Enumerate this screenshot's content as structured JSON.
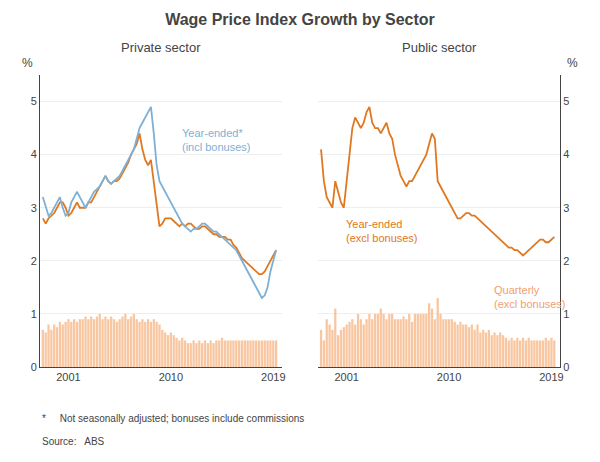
{
  "title": "Wage Price Index Growth by Sector",
  "annotations": [
    "*     Not seasonally adjusted; bonuses include commissions",
    "Source:   ABS"
  ],
  "chart_data": [
    {
      "type": "bar",
      "title": "Private sector",
      "ylabel": "%",
      "x": [
        1998.75,
        1999.0,
        1999.25,
        1999.5,
        1999.75,
        2000.0,
        2000.25,
        2000.5,
        2000.75,
        2001.0,
        2001.25,
        2001.5,
        2001.75,
        2002.0,
        2002.25,
        2002.5,
        2002.75,
        2003.0,
        2003.25,
        2003.5,
        2003.75,
        2004.0,
        2004.25,
        2004.5,
        2004.75,
        2005.0,
        2005.25,
        2005.5,
        2005.75,
        2006.0,
        2006.25,
        2006.5,
        2006.75,
        2007.0,
        2007.25,
        2007.5,
        2007.75,
        2008.0,
        2008.25,
        2008.5,
        2008.75,
        2009.0,
        2009.25,
        2009.5,
        2009.75,
        2010.0,
        2010.25,
        2010.5,
        2010.75,
        2011.0,
        2011.25,
        2011.5,
        2011.75,
        2012.0,
        2012.25,
        2012.5,
        2012.75,
        2013.0,
        2013.25,
        2013.5,
        2013.75,
        2014.0,
        2014.25,
        2014.5,
        2014.75,
        2015.0,
        2015.25,
        2015.5,
        2015.75,
        2016.0,
        2016.25,
        2016.5,
        2016.75,
        2017.0,
        2017.25,
        2017.5,
        2017.75,
        2018.0,
        2018.25,
        2018.5,
        2018.75,
        2019.0,
        2019.25
      ],
      "series": [
        {
          "type": "bar",
          "color": "#f5a86e",
          "values": [
            0.7,
            0.65,
            0.8,
            0.7,
            0.8,
            0.75,
            0.85,
            0.8,
            0.85,
            0.9,
            0.85,
            0.9,
            0.85,
            0.9,
            0.9,
            0.95,
            0.9,
            0.95,
            0.9,
            0.95,
            1.0,
            0.9,
            0.95,
            0.9,
            0.95,
            0.9,
            0.85,
            0.9,
            0.95,
            1.0,
            0.9,
            0.95,
            1.0,
            0.9,
            0.85,
            0.9,
            0.85,
            0.9,
            0.85,
            0.9,
            0.85,
            0.8,
            0.7,
            0.65,
            0.6,
            0.65,
            0.6,
            0.55,
            0.5,
            0.55,
            0.5,
            0.45,
            0.45,
            0.5,
            0.45,
            0.5,
            0.45,
            0.5,
            0.45,
            0.5,
            0.45,
            0.5,
            0.5,
            0.55,
            0.5,
            0.5,
            0.5,
            0.5,
            0.5,
            0.5,
            0.5,
            0.5,
            0.5,
            0.5,
            0.5,
            0.5,
            0.5,
            0.5,
            0.5,
            0.5,
            0.5,
            0.5,
            0.5
          ]
        },
        {
          "type": "line",
          "color": "#e07820",
          "values": [
            2.8,
            2.7,
            2.8,
            2.85,
            2.9,
            3.0,
            3.1,
            3.1,
            3.0,
            2.85,
            2.9,
            3.0,
            3.1,
            3.0,
            3.0,
            3.0,
            3.1,
            3.1,
            3.2,
            3.3,
            3.4,
            3.5,
            3.6,
            3.5,
            3.45,
            3.5,
            3.5,
            3.55,
            3.65,
            3.75,
            3.85,
            4.0,
            4.1,
            4.2,
            4.4,
            4.1,
            3.9,
            3.8,
            3.9,
            3.5,
            3.0,
            2.65,
            2.7,
            2.8,
            2.8,
            2.8,
            2.75,
            2.7,
            2.65,
            2.7,
            2.65,
            2.7,
            2.7,
            2.65,
            2.6,
            2.6,
            2.65,
            2.65,
            2.6,
            2.55,
            2.5,
            2.5,
            2.45,
            2.45,
            2.45,
            2.4,
            2.4,
            2.3,
            2.25,
            2.15,
            2.05,
            2.0,
            1.95,
            1.9,
            1.85,
            1.8,
            1.75,
            1.75,
            1.8,
            1.9,
            2.0,
            2.1,
            2.2
          ]
        },
        {
          "type": "line",
          "color": "#7eb0d5",
          "values": [
            3.2,
            3.0,
            2.85,
            2.9,
            3.0,
            3.1,
            3.2,
            3.0,
            2.85,
            2.9,
            3.1,
            3.2,
            3.3,
            3.2,
            3.1,
            3.0,
            3.1,
            3.2,
            3.3,
            3.35,
            3.4,
            3.5,
            3.6,
            3.5,
            3.45,
            3.5,
            3.55,
            3.6,
            3.7,
            3.8,
            3.9,
            4.0,
            4.1,
            4.3,
            4.5,
            4.6,
            4.7,
            4.8,
            4.9,
            4.4,
            3.8,
            3.5,
            3.4,
            3.3,
            3.2,
            3.1,
            3.0,
            2.9,
            2.8,
            2.7,
            2.65,
            2.6,
            2.55,
            2.6,
            2.6,
            2.65,
            2.7,
            2.7,
            2.65,
            2.6,
            2.55,
            2.55,
            2.5,
            2.45,
            2.4,
            2.35,
            2.3,
            2.25,
            2.2,
            2.1,
            2.0,
            1.9,
            1.8,
            1.7,
            1.6,
            1.5,
            1.4,
            1.3,
            1.35,
            1.5,
            1.8,
            2.0,
            2.2
          ]
        }
      ],
      "xlim": [
        1998.5,
        2019.75
      ],
      "xticks": [
        2001,
        2010,
        2019
      ],
      "ylim": [
        0,
        5.5
      ],
      "yticks": [
        0,
        1,
        2,
        3,
        4,
        5
      ],
      "grid": "y",
      "annotations": [
        {
          "text": "Year-ended*\n(incl bonuses)",
          "x": 2010.8,
          "y": 4.55,
          "color": "#7eb0d5"
        }
      ]
    },
    {
      "type": "bar",
      "title": "Public sector",
      "ylabel": "%",
      "x": [
        1998.75,
        1999.0,
        1999.25,
        1999.5,
        1999.75,
        2000.0,
        2000.25,
        2000.5,
        2000.75,
        2001.0,
        2001.25,
        2001.5,
        2001.75,
        2002.0,
        2002.25,
        2002.5,
        2002.75,
        2003.0,
        2003.25,
        2003.5,
        2003.75,
        2004.0,
        2004.25,
        2004.5,
        2004.75,
        2005.0,
        2005.25,
        2005.5,
        2005.75,
        2006.0,
        2006.25,
        2006.5,
        2006.75,
        2007.0,
        2007.25,
        2007.5,
        2007.75,
        2008.0,
        2008.25,
        2008.5,
        2008.75,
        2009.0,
        2009.25,
        2009.5,
        2009.75,
        2010.0,
        2010.25,
        2010.5,
        2010.75,
        2011.0,
        2011.25,
        2011.5,
        2011.75,
        2012.0,
        2012.25,
        2012.5,
        2012.75,
        2013.0,
        2013.25,
        2013.5,
        2013.75,
        2014.0,
        2014.25,
        2014.5,
        2014.75,
        2015.0,
        2015.25,
        2015.5,
        2015.75,
        2016.0,
        2016.25,
        2016.5,
        2016.75,
        2017.0,
        2017.25,
        2017.5,
        2017.75,
        2018.0,
        2018.25,
        2018.5,
        2018.75,
        2019.0,
        2019.25
      ],
      "series": [
        {
          "type": "bar",
          "color": "#f5a86e",
          "values": [
            0.7,
            0.5,
            0.9,
            0.8,
            0.7,
            1.1,
            0.6,
            0.7,
            0.75,
            0.8,
            0.85,
            0.9,
            0.8,
            1.0,
            0.9,
            0.8,
            0.9,
            1.0,
            0.9,
            1.0,
            1.0,
            1.1,
            1.0,
            0.9,
            1.0,
            1.0,
            0.9,
            0.9,
            0.9,
            0.95,
            0.9,
            1.0,
            0.85,
            1.0,
            1.0,
            1.0,
            1.0,
            1.0,
            1.2,
            1.1,
            0.9,
            1.3,
            1.0,
            0.9,
            0.9,
            0.9,
            0.9,
            0.85,
            0.8,
            0.85,
            0.8,
            0.8,
            0.75,
            0.8,
            0.7,
            0.8,
            0.65,
            0.7,
            0.65,
            0.7,
            0.6,
            0.65,
            0.6,
            0.65,
            0.6,
            0.55,
            0.5,
            0.55,
            0.5,
            0.55,
            0.5,
            0.55,
            0.5,
            0.55,
            0.5,
            0.5,
            0.5,
            0.5,
            0.5,
            0.55,
            0.5,
            0.55,
            0.5
          ]
        },
        {
          "type": "line",
          "color": "#e07820",
          "values": [
            4.1,
            3.5,
            3.2,
            3.1,
            3.0,
            3.5,
            3.3,
            3.1,
            3.0,
            3.5,
            4.1,
            4.5,
            4.7,
            4.6,
            4.5,
            4.6,
            4.8,
            4.9,
            4.6,
            4.5,
            4.5,
            4.4,
            4.5,
            4.6,
            4.4,
            4.3,
            4.0,
            3.8,
            3.6,
            3.5,
            3.4,
            3.5,
            3.5,
            3.6,
            3.7,
            3.8,
            3.9,
            4.0,
            4.2,
            4.4,
            4.3,
            3.5,
            3.4,
            3.3,
            3.2,
            3.1,
            3.0,
            2.9,
            2.8,
            2.8,
            2.85,
            2.9,
            2.9,
            2.85,
            2.85,
            2.8,
            2.75,
            2.7,
            2.65,
            2.6,
            2.55,
            2.5,
            2.45,
            2.4,
            2.35,
            2.3,
            2.25,
            2.25,
            2.2,
            2.2,
            2.15,
            2.1,
            2.15,
            2.2,
            2.25,
            2.3,
            2.35,
            2.4,
            2.4,
            2.35,
            2.35,
            2.4,
            2.45
          ]
        }
      ],
      "xlim": [
        1998.5,
        2019.75
      ],
      "xticks": [
        2001,
        2010,
        2019
      ],
      "ylim": [
        0,
        5.5
      ],
      "yticks": [
        0,
        1,
        2,
        3,
        4,
        5
      ],
      "grid": "y",
      "annotations": [
        {
          "text": "Year-ended\n(excl bonuses)",
          "x": 2000.8,
          "y": 2.85,
          "color": "#e07820"
        },
        {
          "text": "Quarterly\n(excl bonuses)",
          "x": 2013.8,
          "y": 1.6,
          "color": "#f0a070"
        }
      ]
    }
  ]
}
